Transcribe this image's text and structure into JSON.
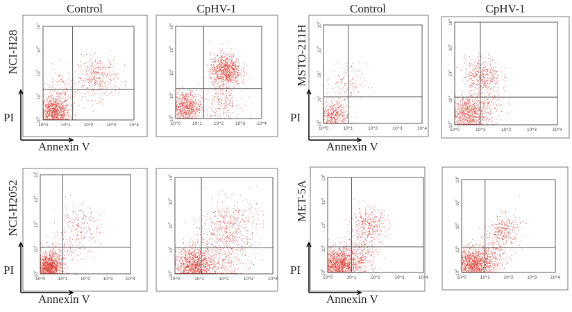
{
  "axis_labels": {
    "y": "PI",
    "x": "Annexin V"
  },
  "column_titles": [
    "Control",
    "CpHV-1",
    "Control",
    "CpHV-1"
  ],
  "row_labels": [
    "NCI-H28",
    "NCI-H2052",
    "MSTO-211H",
    "MET-5A"
  ],
  "colors": {
    "points": "#d9372e",
    "frame": "#777777",
    "gate": "#555555",
    "axis_arrow": "#000000"
  },
  "tick_labels": [
    "10^0",
    "10^1",
    "10^2",
    "10^3",
    "10^4"
  ],
  "chart_data": [
    {
      "type": "scatter",
      "cell_line": "NCI-H28",
      "condition": "Control",
      "xlabel": "Annexin V",
      "ylabel": "PI",
      "xlim": [
        1,
        10000
      ],
      "ylim": [
        1,
        10000
      ],
      "log_scale": true,
      "gate": {
        "x": 20,
        "y": 20
      },
      "clusters": [
        {
          "x": 3,
          "y": 2,
          "spread": 0.35,
          "n": 900
        },
        {
          "x": 250,
          "y": 60,
          "spread": 0.45,
          "n": 350
        },
        {
          "x": 8,
          "y": 20,
          "spread": 0.45,
          "n": 120
        }
      ]
    },
    {
      "type": "scatter",
      "cell_line": "NCI-H28",
      "condition": "CpHV-1",
      "xlabel": "Annexin V",
      "ylabel": "PI",
      "xlim": [
        1,
        10000
      ],
      "ylim": [
        1,
        10000
      ],
      "log_scale": true,
      "gate": {
        "x": 20,
        "y": 20
      },
      "clusters": [
        {
          "x": 3,
          "y": 3,
          "spread": 0.35,
          "n": 700
        },
        {
          "x": 200,
          "y": 120,
          "spread": 0.35,
          "n": 800
        },
        {
          "x": 150,
          "y": 5,
          "spread": 0.4,
          "n": 200
        }
      ]
    },
    {
      "type": "scatter",
      "cell_line": "NCI-H2052",
      "condition": "Control",
      "xlabel": "Annexin V",
      "ylabel": "PI",
      "xlim": [
        1,
        10000
      ],
      "ylim": [
        1,
        10000
      ],
      "log_scale": true,
      "gate": {
        "x": 10,
        "y": 12
      },
      "clusters": [
        {
          "x": 2.5,
          "y": 1.8,
          "spread": 0.25,
          "n": 900
        },
        {
          "x": 40,
          "y": 60,
          "spread": 0.5,
          "n": 220
        },
        {
          "x": 5,
          "y": 4,
          "spread": 0.45,
          "n": 200
        }
      ]
    },
    {
      "type": "scatter",
      "cell_line": "NCI-H2052",
      "condition": "CpHV-1",
      "xlabel": "Annexin V",
      "ylabel": "PI",
      "xlim": [
        1,
        10000
      ],
      "ylim": [
        1,
        10000
      ],
      "log_scale": true,
      "gate": {
        "x": 12,
        "y": 12
      },
      "clusters": [
        {
          "x": 6,
          "y": 2,
          "spread": 0.4,
          "n": 1100
        },
        {
          "x": 150,
          "y": 80,
          "spread": 0.6,
          "n": 500
        },
        {
          "x": 80,
          "y": 3,
          "spread": 0.5,
          "n": 300
        }
      ]
    },
    {
      "type": "scatter",
      "cell_line": "MSTO-211H",
      "condition": "Control",
      "xlabel": "Annexin V",
      "ylabel": "PI",
      "xlim": [
        1,
        10000
      ],
      "ylim": [
        1,
        10000
      ],
      "log_scale": true,
      "gate": {
        "x": 10,
        "y": 12
      },
      "clusters": [
        {
          "x": 2.5,
          "y": 2,
          "spread": 0.3,
          "n": 450
        },
        {
          "x": 8,
          "y": 40,
          "spread": 0.4,
          "n": 120
        }
      ]
    },
    {
      "type": "scatter",
      "cell_line": "MSTO-211H",
      "condition": "CpHV-1",
      "xlabel": "Annexin V",
      "ylabel": "PI",
      "xlim": [
        1,
        10000
      ],
      "ylim": [
        1,
        10000
      ],
      "log_scale": true,
      "gate": {
        "x": 10,
        "y": 12
      },
      "clusters": [
        {
          "x": 3,
          "y": 2.5,
          "spread": 0.35,
          "n": 700
        },
        {
          "x": 12,
          "y": 80,
          "spread": 0.35,
          "n": 400
        },
        {
          "x": 15,
          "y": 5,
          "spread": 0.4,
          "n": 200
        }
      ]
    },
    {
      "type": "scatter",
      "cell_line": "MET-5A",
      "condition": "Control",
      "xlabel": "Annexin V",
      "ylabel": "PI",
      "xlim": [
        1,
        10000
      ],
      "ylim": [
        1,
        10000
      ],
      "log_scale": true,
      "gate": {
        "x": 10,
        "y": 12
      },
      "clusters": [
        {
          "x": 3,
          "y": 2,
          "spread": 0.35,
          "n": 1100
        },
        {
          "x": 50,
          "y": 80,
          "spread": 0.4,
          "n": 350
        },
        {
          "x": 20,
          "y": 4,
          "spread": 0.4,
          "n": 300
        }
      ]
    },
    {
      "type": "scatter",
      "cell_line": "MET-5A",
      "condition": "CpHV-1",
      "xlabel": "Annexin V",
      "ylabel": "PI",
      "xlim": [
        1,
        10000
      ],
      "ylim": [
        1,
        10000
      ],
      "log_scale": true,
      "gate": {
        "x": 10,
        "y": 12
      },
      "clusters": [
        {
          "x": 3,
          "y": 2,
          "spread": 0.35,
          "n": 1000
        },
        {
          "x": 60,
          "y": 60,
          "spread": 0.35,
          "n": 300
        },
        {
          "x": 15,
          "y": 4,
          "spread": 0.35,
          "n": 300
        }
      ]
    }
  ]
}
